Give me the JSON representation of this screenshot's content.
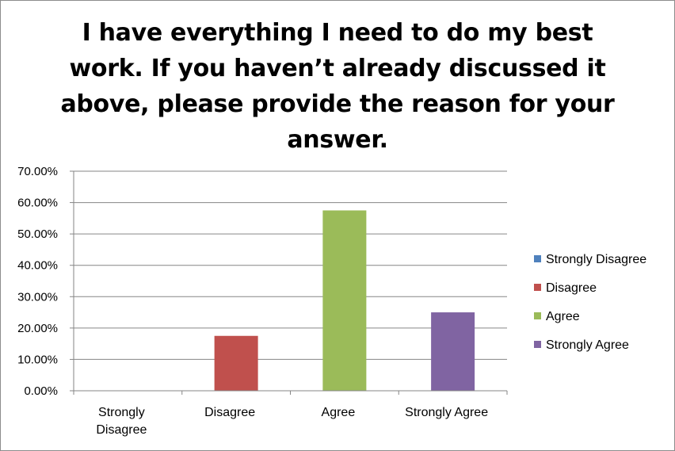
{
  "chart_data": {
    "type": "bar",
    "title": "I have everything I need to do my best work. If you haven’t already discussed it above, please provide the reason for your answer.",
    "categories": [
      "Strongly Disagree",
      "Disagree",
      "Agree",
      "Strongly Agree"
    ],
    "category_lines": [
      [
        "Strongly",
        "Disagree"
      ],
      [
        "Disagree"
      ],
      [
        "Agree"
      ],
      [
        "Strongly Agree"
      ]
    ],
    "values": [
      0.0,
      17.5,
      57.5,
      25.0
    ],
    "colors": [
      "#4f81bd",
      "#c0504d",
      "#9bbb59",
      "#8064a2"
    ],
    "ylim": [
      0,
      70
    ],
    "yticks": [
      0,
      10,
      20,
      30,
      40,
      50,
      60,
      70
    ],
    "ytick_labels": [
      "0.00%",
      "10.00%",
      "20.00%",
      "30.00%",
      "40.00%",
      "50.00%",
      "60.00%",
      "70.00%"
    ],
    "xlabel": "",
    "ylabel": "",
    "grid": true,
    "legend_position": "right",
    "legend": [
      "Strongly Disagree",
      "Disagree",
      "Agree",
      "Strongly Agree"
    ]
  }
}
